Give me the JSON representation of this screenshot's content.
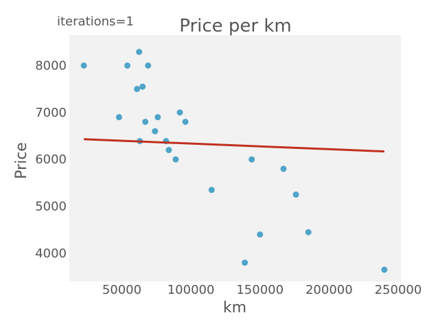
{
  "annotation": "iterations=1",
  "chart_data": {
    "type": "scatter",
    "title": "Price per km",
    "xlabel": "km",
    "ylabel": "Price",
    "xlim": [
      12000,
      252000
    ],
    "ylim": [
      3400,
      8650
    ],
    "xticks": [
      50000,
      100000,
      150000,
      200000,
      250000
    ],
    "yticks": [
      4000,
      5000,
      6000,
      7000,
      8000
    ],
    "grid": false,
    "points": [
      {
        "x": 22500,
        "y": 8000
      },
      {
        "x": 48000,
        "y": 6900
      },
      {
        "x": 54000,
        "y": 8000
      },
      {
        "x": 61000,
        "y": 7500
      },
      {
        "x": 62500,
        "y": 8290
      },
      {
        "x": 63000,
        "y": 6390
      },
      {
        "x": 65000,
        "y": 7550
      },
      {
        "x": 67000,
        "y": 6800
      },
      {
        "x": 69000,
        "y": 8000
      },
      {
        "x": 74000,
        "y": 6600
      },
      {
        "x": 76000,
        "y": 6900
      },
      {
        "x": 82000,
        "y": 6390
      },
      {
        "x": 84000,
        "y": 6200
      },
      {
        "x": 89000,
        "y": 6000
      },
      {
        "x": 92000,
        "y": 7000
      },
      {
        "x": 96000,
        "y": 6800
      },
      {
        "x": 115000,
        "y": 5350
      },
      {
        "x": 139000,
        "y": 3800
      },
      {
        "x": 144000,
        "y": 6000
      },
      {
        "x": 150000,
        "y": 4400
      },
      {
        "x": 167000,
        "y": 5800
      },
      {
        "x": 176000,
        "y": 5250
      },
      {
        "x": 185000,
        "y": 4450
      },
      {
        "x": 240000,
        "y": 3650
      }
    ],
    "regression_line": {
      "x": [
        22500,
        240000
      ],
      "y": [
        6430,
        6170
      ]
    },
    "colors": {
      "points": "#4fa4c9",
      "line": "#c0301e",
      "plot_background": "#f2f2f2",
      "text": "#555555"
    }
  }
}
